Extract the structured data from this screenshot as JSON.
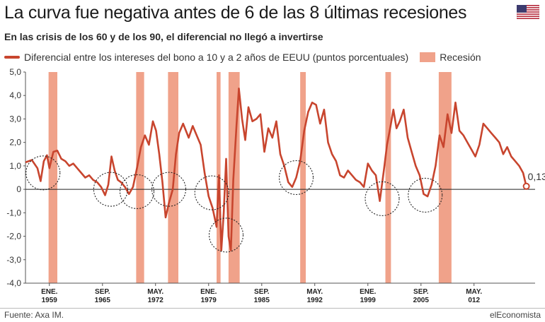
{
  "header": {
    "title": "La curva fue negativa antes de 6 de las 8 últimas recesiones",
    "subtitle": "En las crisis de los 60 y de los 90, el diferencial no llegó a invertirse",
    "flag_icon": "us-flag-icon"
  },
  "legend": {
    "series_label": "Diferencial entre los intereses del bono a 10 y a 2 años de EEUU (puntos porcentuales)",
    "recession_label": "Recesión",
    "series_color": "#c8452e",
    "recession_color": "#f0a28a"
  },
  "footer": {
    "source": "Fuente: Axa IM.",
    "brand": "elEconomista"
  },
  "chart_data": {
    "type": "line",
    "title": "La curva fue negativa antes de 6 de las 8 últimas recesiones",
    "ylabel": "",
    "ylim": [
      -4.0,
      5.0
    ],
    "xlim": [
      1956.0,
      2020.0
    ],
    "grid": false,
    "y_ticks": [
      "5,0",
      "4,0",
      "3,0",
      "2,0",
      "1,0",
      "0",
      "-1,0",
      "-2,0",
      "-3,0",
      "-4,0"
    ],
    "y_tick_values": [
      5,
      4,
      3,
      2,
      1,
      0,
      -1,
      -2,
      -3,
      -4
    ],
    "x_ticks": [
      {
        "month": "ENE.",
        "year": "1959",
        "x": 1959.0
      },
      {
        "month": "SEP.",
        "year": "1965",
        "x": 1965.67
      },
      {
        "month": "MAY.",
        "year": "1972",
        "x": 1972.33
      },
      {
        "month": "ENE.",
        "year": "1979",
        "x": 1979.0
      },
      {
        "month": "SEP.",
        "year": "1985",
        "x": 1985.67
      },
      {
        "month": "MAY.",
        "year": "1992",
        "x": 1992.33
      },
      {
        "month": "ENE.",
        "year": "1999",
        "x": 1999.0
      },
      {
        "month": "SEP.",
        "year": "2005",
        "x": 2005.67
      },
      {
        "month": "MAY.",
        "year": "012",
        "x": 2012.33
      }
    ],
    "recessions": [
      {
        "start": 1958.9,
        "end": 1960.0
      },
      {
        "start": 1969.9,
        "end": 1970.9
      },
      {
        "start": 1973.9,
        "end": 1975.2
      },
      {
        "start": 1980.0,
        "end": 1980.5
      },
      {
        "start": 1981.5,
        "end": 1982.9
      },
      {
        "start": 1990.5,
        "end": 1991.2
      },
      {
        "start": 2001.2,
        "end": 2001.9
      },
      {
        "start": 2007.9,
        "end": 2009.5
      }
    ],
    "inversion_circles": [
      {
        "x": 1958.2,
        "y": 0.7
      },
      {
        "x": 1966.7,
        "y": 0.0
      },
      {
        "x": 1970.0,
        "y": -0.1
      },
      {
        "x": 1974.0,
        "y": 0.0
      },
      {
        "x": 1979.4,
        "y": -0.15
      },
      {
        "x": 1981.2,
        "y": -1.95
      },
      {
        "x": 1990.0,
        "y": 0.5
      },
      {
        "x": 2000.8,
        "y": -0.4
      },
      {
        "x": 2006.2,
        "y": -0.25
      }
    ],
    "end_label": "0,13",
    "series": [
      {
        "name": "Diferencial entre los intereses del bono a 10 y a 2 años de EEUU (puntos porcentuales)",
        "x": [
          1956.0,
          1956.8,
          1957.5,
          1957.9,
          1958.3,
          1958.7,
          1959.0,
          1959.5,
          1960.0,
          1960.5,
          1961.0,
          1961.5,
          1962.0,
          1962.5,
          1963.0,
          1963.5,
          1964.0,
          1964.5,
          1965.0,
          1965.5,
          1966.0,
          1966.4,
          1966.8,
          1967.2,
          1967.6,
          1968.0,
          1968.5,
          1969.0,
          1969.5,
          1970.0,
          1970.5,
          1971.0,
          1971.5,
          1972.0,
          1972.4,
          1972.8,
          1973.2,
          1973.6,
          1974.0,
          1974.5,
          1974.9,
          1975.3,
          1975.8,
          1976.5,
          1977.0,
          1977.5,
          1978.0,
          1978.5,
          1979.0,
          1979.5,
          1980.0,
          1980.3,
          1980.6,
          1980.9,
          1981.2,
          1981.5,
          1981.8,
          1982.1,
          1982.5,
          1982.8,
          1983.2,
          1983.6,
          1984.0,
          1984.5,
          1985.0,
          1985.5,
          1986.0,
          1986.5,
          1987.0,
          1987.5,
          1988.0,
          1988.5,
          1989.0,
          1989.5,
          1990.0,
          1990.5,
          1991.0,
          1991.5,
          1992.0,
          1992.5,
          1993.0,
          1993.5,
          1994.0,
          1994.5,
          1995.0,
          1995.5,
          1996.0,
          1996.5,
          1997.0,
          1997.5,
          1998.0,
          1998.5,
          1999.0,
          1999.5,
          2000.0,
          2000.5,
          2001.0,
          2001.4,
          2001.8,
          2002.2,
          2002.6,
          2003.0,
          2003.5,
          2004.0,
          2004.5,
          2005.0,
          2005.5,
          2006.0,
          2006.5,
          2007.0,
          2007.5,
          2008.0,
          2008.5,
          2009.0,
          2009.5,
          2010.0,
          2010.5,
          2011.0,
          2011.5,
          2012.0,
          2012.5,
          2013.0,
          2013.5,
          2014.0,
          2014.5,
          2015.0,
          2015.5,
          2016.0,
          2016.5,
          2017.0,
          2017.5,
          2018.0,
          2018.5,
          2018.9
        ],
        "y": [
          1.15,
          1.25,
          0.9,
          0.35,
          1.2,
          1.45,
          0.9,
          1.6,
          1.65,
          1.3,
          1.2,
          1.0,
          1.1,
          0.9,
          0.7,
          0.5,
          0.6,
          0.4,
          0.3,
          0.1,
          -0.25,
          0.2,
          1.4,
          0.8,
          0.4,
          0.3,
          0.1,
          -0.2,
          0.1,
          0.9,
          1.8,
          2.3,
          1.9,
          2.9,
          2.5,
          1.5,
          0.3,
          -1.2,
          -0.6,
          0.0,
          1.5,
          2.4,
          2.8,
          2.2,
          2.7,
          2.3,
          1.9,
          0.7,
          -0.3,
          -0.8,
          -1.6,
          0.6,
          -2.6,
          -1.0,
          1.3,
          -2.0,
          -2.6,
          0.4,
          2.7,
          4.3,
          3.0,
          2.1,
          3.5,
          2.9,
          3.0,
          3.2,
          1.6,
          2.6,
          2.2,
          2.9,
          1.5,
          1.0,
          0.3,
          0.1,
          0.5,
          1.2,
          2.5,
          3.3,
          3.7,
          3.6,
          2.8,
          3.4,
          2.0,
          1.5,
          1.2,
          0.6,
          0.5,
          0.8,
          0.6,
          0.4,
          0.3,
          0.1,
          1.1,
          0.8,
          0.6,
          -0.5,
          0.8,
          1.9,
          2.6,
          3.4,
          2.6,
          2.9,
          3.4,
          2.2,
          1.6,
          1.0,
          0.6,
          -0.2,
          -0.3,
          0.2,
          1.0,
          2.3,
          1.8,
          3.2,
          2.4,
          3.7,
          2.5,
          2.3,
          2.0,
          1.7,
          1.4,
          1.9,
          2.8,
          2.6,
          2.4,
          2.2,
          2.0,
          1.5,
          1.8,
          1.4,
          1.2,
          1.0,
          0.7,
          0.13
        ]
      }
    ]
  }
}
